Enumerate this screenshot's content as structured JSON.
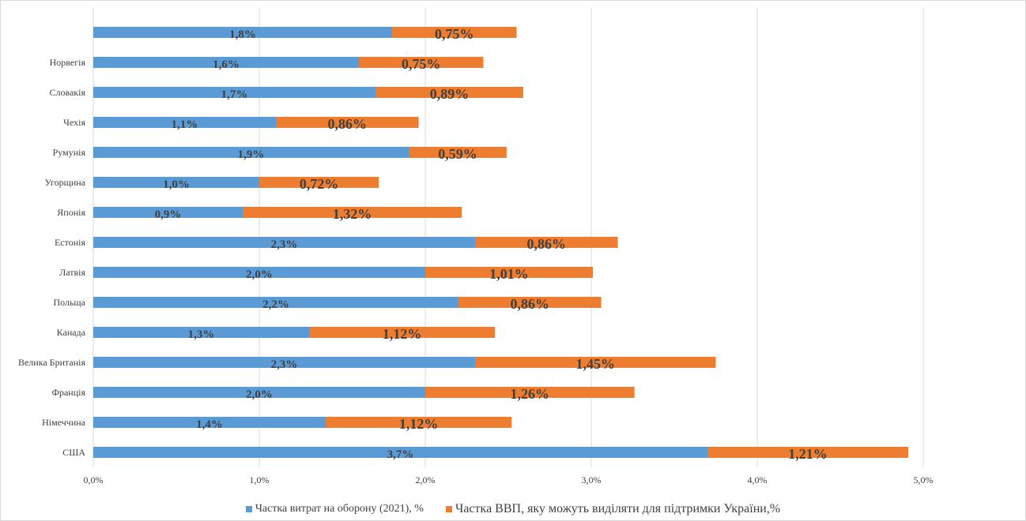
{
  "chart_data": {
    "type": "bar",
    "orientation": "horizontal",
    "stacked": true,
    "categories": [
      "США",
      "Німеччина",
      "Франція",
      "Велика Британія",
      "Канада",
      "Польща",
      "Латвія",
      "Естонія",
      "Японія",
      "Угорщина",
      "Румунія",
      "Чехія",
      "Словакія",
      "Норвегія",
      ""
    ],
    "series": [
      {
        "name": "Частка витрат на оборону (2021), %",
        "color": "#5b9bd5",
        "values": [
          3.7,
          1.4,
          2.0,
          2.3,
          1.3,
          2.2,
          2.0,
          2.3,
          0.9,
          1.0,
          1.9,
          1.1,
          1.7,
          1.6,
          1.8
        ],
        "labels": [
          "3,7%",
          "1,4%",
          "2,0%",
          "2,3%",
          "1,3%",
          "2,2%",
          "2,0%",
          "2,3%",
          "0,9%",
          "1,0%",
          "1,9%",
          "1,1%",
          "1,7%",
          "1,6%",
          "1,8%"
        ]
      },
      {
        "name": "Частка ВВП, яку можуть виділяти для підтримки України,%",
        "color": "#ed7d31",
        "values": [
          1.21,
          1.12,
          1.26,
          1.45,
          1.12,
          0.86,
          1.01,
          0.86,
          1.32,
          0.72,
          0.59,
          0.86,
          0.89,
          0.75,
          0.75
        ],
        "labels": [
          "1,21%",
          "1,12%",
          "1,26%",
          "1,45%",
          "1,12%",
          "0,86%",
          "1,01%",
          "0,86%",
          "1,32%",
          "0,72%",
          "0,59%",
          "0,86%",
          "0,89%",
          "0,75%",
          "0,75%"
        ]
      }
    ],
    "xlim": [
      0,
      5
    ],
    "xticks": [
      0,
      1,
      2,
      3,
      4,
      5
    ],
    "xtick_labels": [
      "0,0%",
      "1,0%",
      "2,0%",
      "3,0%",
      "4,0%",
      "5,0%"
    ],
    "grid": true,
    "legend_position": "bottom"
  }
}
